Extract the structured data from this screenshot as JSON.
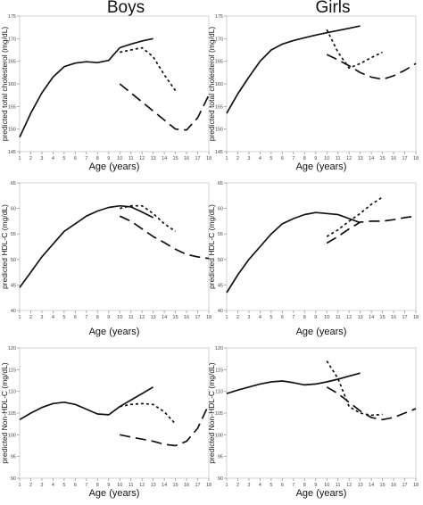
{
  "columns": {
    "boys": "Boys",
    "girls": "Girls"
  },
  "chart_data": [
    {
      "type": "line",
      "column": "Boys",
      "xlabel": "Age (years)",
      "ylabel": "predicted total cholesterol (mg/dL)",
      "xlim": [
        1,
        18
      ],
      "ylim": [
        145,
        175
      ],
      "yticks": [
        145,
        150,
        155,
        160,
        165,
        170,
        175
      ],
      "xticks": [
        1,
        2,
        3,
        4,
        5,
        6,
        7,
        8,
        9,
        10,
        11,
        12,
        13,
        14,
        15,
        16,
        17,
        18
      ],
      "series": [
        {
          "style": "solid",
          "x": [
            1,
            2,
            3,
            4,
            5,
            6,
            7,
            8,
            9,
            10,
            11,
            12,
            13
          ],
          "y": [
            148.2,
            153.5,
            158.0,
            161.5,
            163.8,
            164.6,
            164.9,
            164.7,
            165.2,
            168.0,
            168.8,
            169.5,
            170.0
          ]
        },
        {
          "style": "dotted",
          "x": [
            10,
            11,
            12,
            13,
            14,
            15
          ],
          "y": [
            167.0,
            167.5,
            168.0,
            166.0,
            162.0,
            158.5
          ]
        },
        {
          "style": "dashed",
          "x": [
            10,
            11,
            12,
            13,
            14,
            15,
            16,
            17,
            18
          ],
          "y": [
            160.0,
            158.0,
            156.0,
            154.0,
            152.0,
            150.0,
            149.8,
            152.5,
            157.5
          ]
        }
      ]
    },
    {
      "type": "line",
      "column": "Girls",
      "xlabel": "Age (years)",
      "ylabel": "predicted total cholesterol (mg/dL)",
      "xlim": [
        1,
        18
      ],
      "ylim": [
        145,
        175
      ],
      "yticks": [
        145,
        150,
        155,
        160,
        165,
        170,
        175
      ],
      "xticks": [
        1,
        2,
        3,
        4,
        5,
        6,
        7,
        8,
        9,
        10,
        11,
        12,
        13,
        14,
        15,
        16,
        17,
        18
      ],
      "series": [
        {
          "style": "solid",
          "x": [
            1,
            2,
            3,
            4,
            5,
            6,
            7,
            8,
            9,
            10,
            11,
            12,
            13
          ],
          "y": [
            153.5,
            157.8,
            161.5,
            165.0,
            167.5,
            168.8,
            169.6,
            170.2,
            170.8,
            171.3,
            171.8,
            172.3,
            172.8
          ]
        },
        {
          "style": "dotted",
          "x": [
            10,
            11,
            12,
            13,
            14,
            15
          ],
          "y": [
            172.0,
            167.0,
            163.5,
            164.5,
            165.8,
            167.0
          ]
        },
        {
          "style": "dashed",
          "x": [
            10,
            11,
            12,
            13,
            14,
            15,
            16,
            17,
            18
          ],
          "y": [
            166.5,
            165.3,
            164.0,
            162.5,
            161.5,
            161.0,
            161.8,
            163.0,
            164.5
          ]
        }
      ]
    },
    {
      "type": "line",
      "column": "Boys",
      "xlabel": "Age (years)",
      "ylabel": "predicted HDL-C (mg/dL)",
      "xlim": [
        1,
        18
      ],
      "ylim": [
        40,
        65
      ],
      "yticks": [
        40,
        45,
        50,
        55,
        60,
        65
      ],
      "xticks": [
        1,
        2,
        3,
        4,
        5,
        6,
        7,
        8,
        9,
        10,
        11,
        12,
        13,
        14,
        15,
        16,
        17,
        18
      ],
      "series": [
        {
          "style": "solid",
          "x": [
            1,
            2,
            3,
            4,
            5,
            6,
            7,
            8,
            9,
            10,
            11,
            12,
            13
          ],
          "y": [
            44.5,
            47.5,
            50.5,
            53.0,
            55.5,
            57.0,
            58.5,
            59.5,
            60.2,
            60.5,
            60.3,
            59.3,
            58.2
          ]
        },
        {
          "style": "dotted",
          "x": [
            10,
            11,
            12,
            13,
            14,
            15
          ],
          "y": [
            60.0,
            60.5,
            60.5,
            59.0,
            57.0,
            55.5
          ]
        },
        {
          "style": "dashed",
          "x": [
            10,
            11,
            12,
            13,
            14,
            15,
            16,
            17,
            18
          ],
          "y": [
            58.5,
            57.5,
            56.0,
            54.5,
            53.3,
            52.0,
            51.0,
            50.5,
            50.2
          ]
        }
      ]
    },
    {
      "type": "line",
      "column": "Girls",
      "xlabel": "Age (years)",
      "ylabel": "predicted HDL-C (mg/dL)",
      "xlim": [
        1,
        18
      ],
      "ylim": [
        40,
        65
      ],
      "yticks": [
        40,
        45,
        50,
        55,
        60,
        65
      ],
      "xticks": [
        1,
        2,
        3,
        4,
        5,
        6,
        7,
        8,
        9,
        10,
        11,
        12,
        13,
        14,
        15,
        16,
        17,
        18
      ],
      "series": [
        {
          "style": "solid",
          "x": [
            1,
            2,
            3,
            4,
            5,
            6,
            7,
            8,
            9,
            10,
            11,
            12,
            13
          ],
          "y": [
            43.5,
            47.0,
            50.0,
            52.5,
            55.0,
            57.0,
            58.0,
            58.8,
            59.2,
            59.0,
            58.8,
            58.0,
            57.2
          ]
        },
        {
          "style": "dotted",
          "x": [
            10,
            11,
            12,
            13,
            14,
            15
          ],
          "y": [
            54.5,
            55.8,
            57.5,
            59.0,
            60.8,
            62.2
          ]
        },
        {
          "style": "dashed",
          "x": [
            10,
            11,
            12,
            13,
            14,
            15,
            16,
            17,
            18
          ],
          "y": [
            53.2,
            54.5,
            56.0,
            57.3,
            57.5,
            57.5,
            57.8,
            58.2,
            58.5
          ]
        }
      ]
    },
    {
      "type": "line",
      "column": "Boys",
      "xlabel": "Age (years)",
      "ylabel": "predicted Non-HDL-C (mg/dL)",
      "xlim": [
        1,
        18
      ],
      "ylim": [
        90,
        120
      ],
      "yticks": [
        90,
        95,
        100,
        105,
        110,
        115,
        120
      ],
      "xticks": [
        1,
        2,
        3,
        4,
        5,
        6,
        7,
        8,
        9,
        10,
        11,
        12,
        13,
        14,
        15,
        16,
        17,
        18
      ],
      "series": [
        {
          "style": "solid",
          "x": [
            1,
            2,
            3,
            4,
            5,
            6,
            7,
            8,
            9,
            10,
            11,
            12,
            13
          ],
          "y": [
            103.5,
            105.0,
            106.3,
            107.2,
            107.5,
            107.0,
            105.9,
            104.8,
            104.6,
            106.5,
            108.0,
            109.5,
            111.0
          ]
        },
        {
          "style": "dotted",
          "x": [
            10,
            11,
            12,
            13,
            14,
            15
          ],
          "y": [
            106.5,
            107.0,
            107.2,
            107.0,
            105.3,
            102.5
          ]
        },
        {
          "style": "dashed",
          "x": [
            10,
            11,
            12,
            13,
            14,
            15,
            16,
            17,
            18
          ],
          "y": [
            100.0,
            99.5,
            99.0,
            98.5,
            97.8,
            97.5,
            98.5,
            101.5,
            107.0
          ]
        }
      ]
    },
    {
      "type": "line",
      "column": "Girls",
      "xlabel": "Age (years)",
      "ylabel": "predicted Non-HDL-C (mg/dL)",
      "xlim": [
        1,
        18
      ],
      "ylim": [
        90,
        120
      ],
      "yticks": [
        90,
        95,
        100,
        105,
        110,
        115,
        120
      ],
      "xticks": [
        1,
        2,
        3,
        4,
        5,
        6,
        7,
        8,
        9,
        10,
        11,
        12,
        13,
        14,
        15,
        16,
        17,
        18
      ],
      "series": [
        {
          "style": "solid",
          "x": [
            1,
            2,
            3,
            4,
            5,
            6,
            7,
            8,
            9,
            10,
            11,
            12,
            13
          ],
          "y": [
            109.5,
            110.3,
            111.0,
            111.7,
            112.2,
            112.4,
            112.0,
            111.5,
            111.7,
            112.2,
            112.8,
            113.5,
            114.2
          ]
        },
        {
          "style": "dotted",
          "x": [
            10,
            11,
            12,
            13,
            14,
            15
          ],
          "y": [
            117.0,
            113.0,
            106.5,
            105.0,
            104.5,
            104.7
          ]
        },
        {
          "style": "dashed",
          "x": [
            10,
            11,
            12,
            13,
            14,
            15,
            16,
            17,
            18
          ],
          "y": [
            111.0,
            109.5,
            107.5,
            105.5,
            104.0,
            103.5,
            104.0,
            105.0,
            106.0
          ]
        }
      ]
    }
  ]
}
